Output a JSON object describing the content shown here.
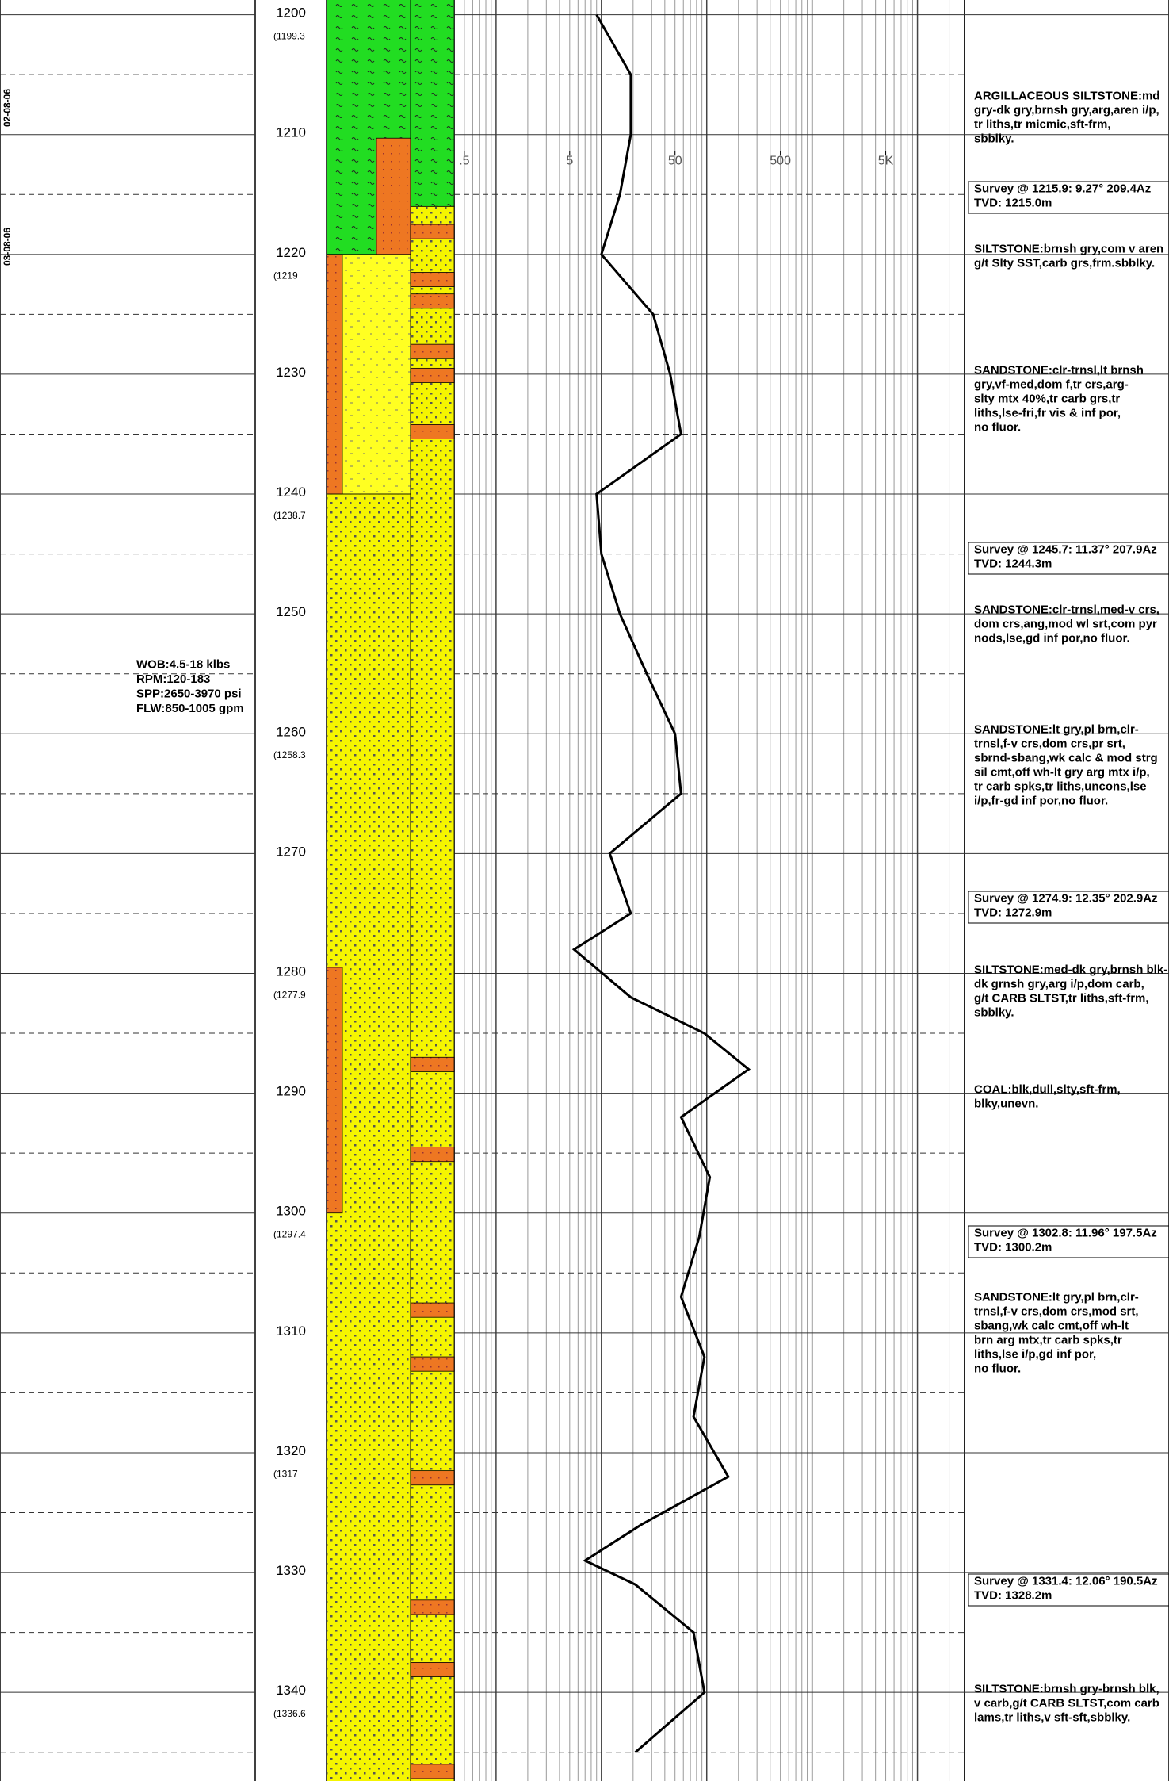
{
  "depth_track": {
    "ylim": [
      1198.77,
      1347.4
    ],
    "yticks": [
      1200,
      1210,
      1220,
      1230,
      1240,
      1250,
      1260,
      1270,
      1280,
      1290,
      1300,
      1310,
      1320,
      1330,
      1340
    ],
    "tvd_labels": [
      "(1199.3",
      "(1219",
      "(1238.7",
      "(1258.3",
      "(1277.9",
      "(1297.4",
      "(1317",
      "(1336.6"
    ]
  },
  "dates": [
    "02-08-06",
    "03-08-06"
  ],
  "drilling_parameters": [
    "WOB:4.5-18 klbs",
    "RPM:120-183",
    "SPP:2650-3970 psi",
    "FLW:850-1005 gpm"
  ],
  "resistivity": {
    "log_scale": true,
    "xlim": [
      0.4,
      28000
    ],
    "xticks": [
      {
        "value": 0.5,
        "label": ".5"
      },
      5,
      50,
      500,
      {
        "value": 5000,
        "label": "5K"
      }
    ],
    "color": "#000000",
    "depths": [
      1200,
      1205,
      1210,
      1215,
      1220,
      1225,
      1230,
      1235,
      1240,
      1245,
      1250,
      1255,
      1260,
      1265,
      1270,
      1275,
      1278,
      1282,
      1285,
      1288,
      1292,
      1297,
      1302,
      1307,
      1312,
      1317,
      1322,
      1326,
      1329,
      1331,
      1335,
      1340,
      1345
    ],
    "values": [
      9,
      19,
      19,
      15,
      10,
      31,
      45,
      57,
      9,
      10,
      15,
      27,
      50,
      57,
      12,
      19,
      5.5,
      19,
      95,
      250,
      57,
      107,
      85,
      57,
      95,
      75,
      160,
      24,
      7,
      21,
      75,
      95,
      21
    ]
  },
  "descriptions": [
    [
      "ARGILLACEOUS SILTSTONE:md",
      "gry-dk gry,brnsh gry,arg,aren i/p,",
      "tr liths,tr micmic,sft-frm,",
      "sbblky."
    ],
    [
      "Survey @ 1215.9: 9.27° 209.4Az",
      "TVD: 1215.0m"
    ],
    [
      "SILTSTONE:brnsh gry,com v aren",
      "g/t Slty SST,carb grs,frm.sbblky."
    ],
    [
      "SANDSTONE:clr-trnsl,lt brnsh",
      "gry,vf-med,dom f,tr crs,arg-",
      "slty mtx 40%,tr carb grs,tr",
      "liths,lse-fri,fr vis & inf por,",
      "no fluor."
    ],
    [
      "Survey @ 1245.7: 11.37° 207.9Az",
      "TVD: 1244.3m"
    ],
    [
      "SANDSTONE:clr-trnsl,med-v crs,",
      "dom crs,ang,mod wl srt,com pyr",
      "nods,lse,gd inf por,no fluor."
    ],
    [
      "SANDSTONE:lt gry,pl brn,clr-",
      "trnsl,f-v crs,dom crs,pr srt,",
      "sbrnd-sbang,wk calc & mod strg",
      "sil cmt,off wh-lt gry arg mtx i/p,",
      "tr carb spks,tr liths,uncons,lse",
      "i/p,fr-gd inf por,no fluor."
    ],
    [
      "Survey @ 1274.9: 12.35° 202.9Az",
      "TVD: 1272.9m"
    ],
    [
      "SILTSTONE:med-dk gry,brnsh blk-",
      "dk grnsh gry,arg i/p,dom carb,",
      "g/t CARB SLTST,tr liths,sft-frm,",
      "sbblky."
    ],
    [
      "COAL:blk,dull,slty,sft-frm,",
      "blky,unevn."
    ],
    [
      "Survey @ 1302.8: 11.96° 197.5Az",
      "TVD: 1300.2m"
    ],
    [
      "SANDSTONE:lt gry,pl brn,clr-",
      "trnsl,f-v crs,dom crs,mod srt,",
      "sbang,wk calc cmt,off wh-lt",
      "brn arg mtx,tr carb spks,tr",
      "liths,lse i/p,gd inf por,",
      "no fluor."
    ],
    [
      "Survey @ 1331.4: 12.06° 190.5Az",
      "TVD: 1328.2m"
    ],
    [
      "SILTSTONE:brnsh gry-brnsh blk,",
      "v carb,g/t CARB SLTST,com carb",
      "lams,tr liths,v sft-sft,sbblky."
    ]
  ]
}
